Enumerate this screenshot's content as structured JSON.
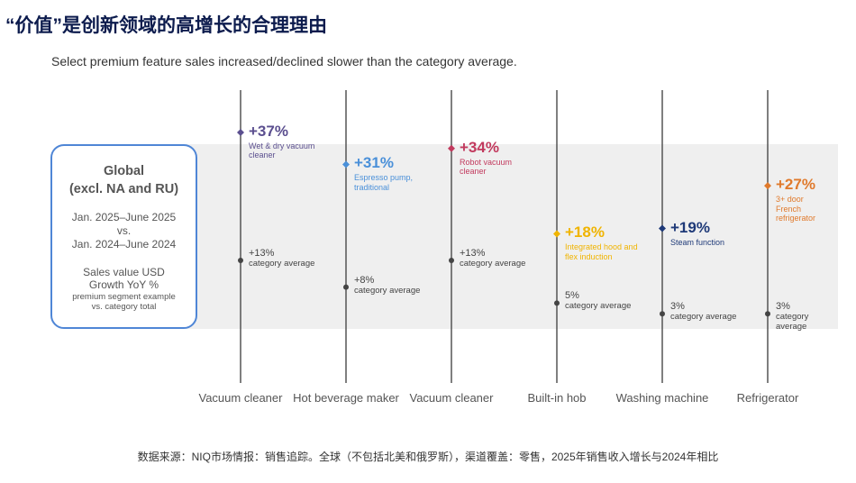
{
  "chart_data": {
    "type": "dot",
    "title": "“价值”是创新领域的高增长的合理理由",
    "subtitle": "Select premium feature sales increased/declined slower than the category average.",
    "categories": [
      "Vacuum cleaner",
      "Hot beverage maker",
      "Vacuum cleaner",
      "Built-in hob",
      "Washing machine",
      "Refrigerator"
    ],
    "premium": {
      "values": [
        37,
        31,
        34,
        18,
        19,
        27
      ],
      "value_labels": [
        "+37%",
        "+31%",
        "+34%",
        "+18%",
        "+19%",
        "+27%"
      ],
      "colors": [
        "#5b4f8f",
        "#4a90d9",
        "#c23a5e",
        "#f0b400",
        "#1f3a78",
        "#e07a2c"
      ],
      "descriptions": [
        "Wet & dry vacuum cleaner",
        "Espresso pump, traditional",
        "Robot vacuum cleaner",
        "Integrated hood and flex induction",
        "Steam function",
        "3+ door French refrigerator"
      ]
    },
    "category_average": {
      "name": "category average",
      "color": "#444444",
      "values": [
        13,
        8,
        13,
        5,
        3,
        3
      ],
      "value_labels": [
        "+13%",
        "+8%",
        "+13%",
        "5%",
        "3%",
        "3%"
      ]
    },
    "box": {
      "heading": [
        "Global",
        "(excl. NA and RU)"
      ],
      "period": [
        "Jan. 2025–June 2025",
        "vs.",
        "Jan. 2024–June 2024"
      ],
      "measure": [
        "Sales value USD",
        "Growth YoY %"
      ],
      "note": [
        "premium segment example",
        "vs. category total"
      ]
    },
    "source": "数据来源：NIQ市场情报：销售追踪。全球（不包括北美和俄罗斯），渠道覆盖：零售，2025年销售收入增长与2024年相比"
  }
}
